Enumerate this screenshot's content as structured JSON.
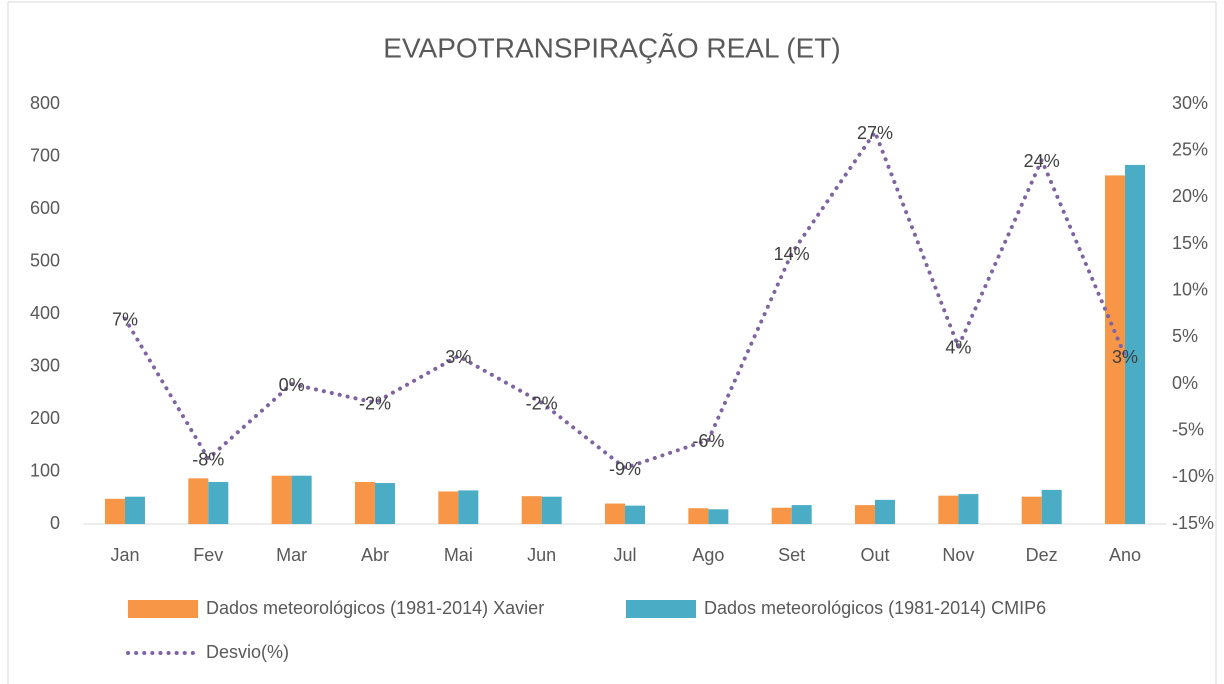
{
  "chart_data": {
    "type": "bar-line",
    "title": "EVAPOTRANSPIRAÇÃO REAL (ET)",
    "categories": [
      "Jan",
      "Fev",
      "Mar",
      "Abr",
      "Mai",
      "Jun",
      "Jul",
      "Ago",
      "Set",
      "Out",
      "Nov",
      "Dez",
      "Ano"
    ],
    "series": [
      {
        "name": "Dados meteorológicos (1981-2014) Xavier",
        "type": "bar",
        "color": "#f79646",
        "values": [
          48,
          87,
          92,
          80,
          62,
          53,
          39,
          30,
          31,
          36,
          54,
          52,
          664
        ]
      },
      {
        "name": "Dados meteorológicos (1981-2014) CMIP6",
        "type": "bar",
        "color": "#4bacc6",
        "values": [
          52,
          80,
          92,
          78,
          64,
          52,
          35,
          28,
          36,
          46,
          57,
          65,
          684
        ]
      },
      {
        "name": "Desvio(%)",
        "type": "line",
        "axis": "y2",
        "color": "#8064a2",
        "values": [
          7,
          -8,
          0,
          -2,
          3,
          -2,
          -9,
          -6,
          14,
          27,
          4,
          24,
          3
        ],
        "value_labels": [
          "7%",
          "-8%",
          "0%",
          "-2%",
          "3%",
          "-2%",
          "-9%",
          "-6%",
          "14%",
          "27%",
          "4%",
          "24%",
          "3%"
        ]
      }
    ],
    "ylim": [
      0,
      800
    ],
    "yticks": [
      0,
      100,
      200,
      300,
      400,
      500,
      600,
      700,
      800
    ],
    "y2lim": [
      -15,
      30
    ],
    "y2ticks": [
      {
        "value": -15,
        "label": "-15%"
      },
      {
        "value": -10,
        "label": "-10%"
      },
      {
        "value": -5,
        "label": "-5%"
      },
      {
        "value": 0,
        "label": "0%"
      },
      {
        "value": 5,
        "label": "5%"
      },
      {
        "value": 10,
        "label": "10%"
      },
      {
        "value": 15,
        "label": "15%"
      },
      {
        "value": 20,
        "label": "20%"
      },
      {
        "value": 25,
        "label": "25%"
      },
      {
        "value": 30,
        "label": "30%"
      }
    ],
    "grid": false
  }
}
